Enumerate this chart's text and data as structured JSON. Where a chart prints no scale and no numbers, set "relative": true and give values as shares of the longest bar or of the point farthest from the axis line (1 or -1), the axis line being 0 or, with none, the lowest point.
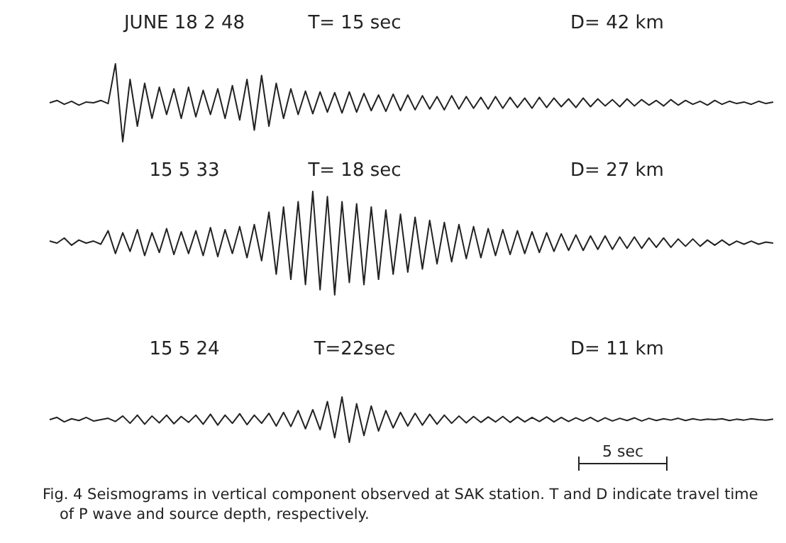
{
  "chart_data": [
    {
      "type": "line",
      "relative": true,
      "annotations": [
        "JUNE 18  2 48",
        "T= 15 sec",
        "D= 42 km"
      ],
      "categories": [
        null,
        null,
        null,
        null,
        null,
        null,
        null,
        null,
        null,
        null,
        null,
        null,
        null,
        null,
        null,
        null,
        null,
        null,
        null,
        null,
        null,
        null,
        null,
        null,
        null,
        null,
        null,
        null,
        null,
        null,
        null,
        null,
        null,
        null,
        null,
        null,
        null,
        null,
        null,
        null,
        null,
        null,
        null,
        null,
        null,
        null,
        null,
        null,
        null,
        null,
        null,
        null,
        null,
        null,
        null,
        null,
        null,
        null,
        null,
        null,
        null,
        null,
        null,
        null,
        null,
        null,
        null,
        null,
        null,
        null,
        null,
        null,
        null,
        null,
        null,
        null,
        null,
        null,
        null,
        null,
        null,
        null,
        null,
        null,
        null,
        null,
        null,
        null,
        null,
        null,
        null,
        null,
        null,
        null,
        null,
        null,
        null,
        null,
        null,
        null
      ],
      "series": [
        {
          "color": "#222222",
          "values": [
            0.5,
            0.53,
            0.48,
            0.52,
            0.47,
            0.51,
            0.5,
            0.53,
            0.49,
            1.0,
            0.0,
            0.8,
            0.2,
            0.75,
            0.3,
            0.7,
            0.35,
            0.68,
            0.3,
            0.7,
            0.32,
            0.66,
            0.35,
            0.68,
            0.3,
            0.72,
            0.28,
            0.8,
            0.15,
            0.85,
            0.2,
            0.75,
            0.3,
            0.68,
            0.35,
            0.65,
            0.36,
            0.64,
            0.38,
            0.63,
            0.37,
            0.64,
            0.38,
            0.62,
            0.4,
            0.6,
            0.39,
            0.61,
            0.4,
            0.6,
            0.41,
            0.59,
            0.42,
            0.58,
            0.41,
            0.59,
            0.42,
            0.58,
            0.43,
            0.57,
            0.42,
            0.58,
            0.43,
            0.57,
            0.44,
            0.56,
            0.43,
            0.57,
            0.44,
            0.56,
            0.45,
            0.55,
            0.44,
            0.56,
            0.45,
            0.55,
            0.46,
            0.54,
            0.45,
            0.55,
            0.46,
            0.54,
            0.47,
            0.53,
            0.46,
            0.54,
            0.47,
            0.53,
            0.48,
            0.52,
            0.47,
            0.53,
            0.48,
            0.52,
            0.49,
            0.51,
            0.48,
            0.52,
            0.49,
            0.51
          ]
        }
      ]
    },
    {
      "type": "line",
      "relative": true,
      "annotations": [
        "15  5  33",
        "T= 18 sec",
        "D= 27 km"
      ],
      "categories": [
        null,
        null,
        null,
        null,
        null,
        null,
        null,
        null,
        null,
        null,
        null,
        null,
        null,
        null,
        null,
        null,
        null,
        null,
        null,
        null,
        null,
        null,
        null,
        null,
        null,
        null,
        null,
        null,
        null,
        null,
        null,
        null,
        null,
        null,
        null,
        null,
        null,
        null,
        null,
        null,
        null,
        null,
        null,
        null,
        null,
        null,
        null,
        null,
        null,
        null,
        null,
        null,
        null,
        null,
        null,
        null,
        null,
        null,
        null,
        null,
        null,
        null,
        null,
        null,
        null,
        null,
        null,
        null,
        null,
        null,
        null,
        null,
        null,
        null,
        null,
        null,
        null,
        null,
        null,
        null,
        null,
        null,
        null,
        null,
        null,
        null,
        null,
        null,
        null,
        null,
        null,
        null,
        null,
        null,
        null,
        null,
        null,
        null,
        null,
        null
      ],
      "series": [
        {
          "color": "#222222",
          "values": [
            0.52,
            0.5,
            0.55,
            0.48,
            0.53,
            0.5,
            0.52,
            0.49,
            0.62,
            0.4,
            0.6,
            0.42,
            0.63,
            0.38,
            0.6,
            0.41,
            0.64,
            0.39,
            0.61,
            0.4,
            0.62,
            0.38,
            0.65,
            0.37,
            0.63,
            0.4,
            0.66,
            0.36,
            0.68,
            0.33,
            0.8,
            0.2,
            0.85,
            0.15,
            0.9,
            0.1,
            1.0,
            0.05,
            0.95,
            0.0,
            0.9,
            0.12,
            0.88,
            0.1,
            0.85,
            0.15,
            0.82,
            0.2,
            0.78,
            0.22,
            0.75,
            0.25,
            0.72,
            0.3,
            0.7,
            0.32,
            0.68,
            0.35,
            0.66,
            0.36,
            0.64,
            0.38,
            0.63,
            0.39,
            0.62,
            0.4,
            0.61,
            0.41,
            0.6,
            0.42,
            0.59,
            0.43,
            0.58,
            0.43,
            0.57,
            0.44,
            0.57,
            0.44,
            0.56,
            0.45,
            0.56,
            0.45,
            0.55,
            0.46,
            0.55,
            0.46,
            0.54,
            0.47,
            0.54,
            0.47,
            0.53,
            0.48,
            0.53,
            0.48,
            0.52,
            0.49,
            0.52,
            0.49,
            0.51,
            0.5
          ]
        }
      ]
    },
    {
      "type": "line",
      "relative": true,
      "annotations": [
        "15  5  24",
        "T=22sec",
        "D= 11 km",
        "5 sec",
        "Fig. 4  Seismograms in vertical component observed at SAK station.  T and D indicate travel time of P wave and source depth, respectively."
      ],
      "categories": [
        null,
        null,
        null,
        null,
        null,
        null,
        null,
        null,
        null,
        null,
        null,
        null,
        null,
        null,
        null,
        null,
        null,
        null,
        null,
        null,
        null,
        null,
        null,
        null,
        null,
        null,
        null,
        null,
        null,
        null,
        null,
        null,
        null,
        null,
        null,
        null,
        null,
        null,
        null,
        null,
        null,
        null,
        null,
        null,
        null,
        null,
        null,
        null,
        null,
        null,
        null,
        null,
        null,
        null,
        null,
        null,
        null,
        null,
        null,
        null,
        null,
        null,
        null,
        null,
        null,
        null,
        null,
        null,
        null,
        null,
        null,
        null,
        null,
        null,
        null,
        null,
        null,
        null,
        null,
        null,
        null,
        null,
        null,
        null,
        null,
        null,
        null,
        null,
        null,
        null,
        null,
        null,
        null,
        null,
        null,
        null,
        null,
        null,
        null,
        null
      ],
      "series": [
        {
          "color": "#222222",
          "values": [
            0.5,
            0.55,
            0.45,
            0.52,
            0.48,
            0.55,
            0.47,
            0.5,
            0.53,
            0.46,
            0.58,
            0.42,
            0.6,
            0.4,
            0.58,
            0.43,
            0.6,
            0.41,
            0.57,
            0.44,
            0.6,
            0.4,
            0.62,
            0.38,
            0.6,
            0.42,
            0.63,
            0.39,
            0.6,
            0.42,
            0.64,
            0.36,
            0.66,
            0.35,
            0.7,
            0.3,
            0.72,
            0.28,
            0.9,
            0.1,
            1.0,
            0.0,
            0.85,
            0.15,
            0.8,
            0.25,
            0.7,
            0.32,
            0.66,
            0.36,
            0.64,
            0.38,
            0.62,
            0.4,
            0.6,
            0.42,
            0.58,
            0.43,
            0.57,
            0.44,
            0.56,
            0.45,
            0.57,
            0.44,
            0.56,
            0.45,
            0.55,
            0.46,
            0.56,
            0.45,
            0.55,
            0.46,
            0.54,
            0.47,
            0.55,
            0.46,
            0.54,
            0.47,
            0.53,
            0.48,
            0.54,
            0.47,
            0.53,
            0.48,
            0.52,
            0.49,
            0.53,
            0.48,
            0.52,
            0.49,
            0.51,
            0.5,
            0.52,
            0.48,
            0.51,
            0.49,
            0.52,
            0.5,
            0.49,
            0.51
          ]
        }
      ]
    }
  ]
}
